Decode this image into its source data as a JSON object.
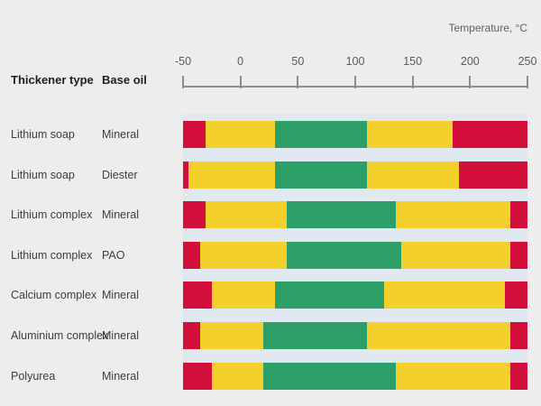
{
  "header": {
    "temperature_label": "Temperature, °C",
    "thickener_col": "Thickener type",
    "base_oil_col": "Base oil"
  },
  "colors": {
    "red": "#d30f3c",
    "yellow": "#f4d02a",
    "green": "#2d9f68",
    "axis": "#8e8e8e",
    "plot_background": "#e0e9f0",
    "page_background": "#ededed"
  },
  "chart_data": {
    "type": "bar",
    "subtype": "stacked-horizontal-temperature-ranges",
    "title": "Temperature, °C",
    "xlabel": "Temperature, °C",
    "xlim": [
      -50,
      250
    ],
    "x_ticks": [
      -50,
      0,
      50,
      100,
      150,
      200,
      250
    ],
    "grid": false,
    "legend": "none",
    "zone_color_names": [
      "red",
      "yellow",
      "green"
    ],
    "rows": [
      {
        "thickener": "Lithium soap",
        "base_oil": "Mineral",
        "bounds": [
          -50,
          -30,
          30,
          110,
          185,
          250
        ],
        "zones": [
          "red",
          "yellow",
          "green",
          "yellow",
          "red"
        ]
      },
      {
        "thickener": "Lithium soap",
        "base_oil": "Diester",
        "bounds": [
          -50,
          -45,
          30,
          110,
          190,
          250
        ],
        "zones": [
          "red",
          "yellow",
          "green",
          "yellow",
          "red"
        ]
      },
      {
        "thickener": "Lithium complex",
        "base_oil": "Mineral",
        "bounds": [
          -50,
          -30,
          40,
          135,
          235,
          250
        ],
        "zones": [
          "red",
          "yellow",
          "green",
          "yellow",
          "red"
        ]
      },
      {
        "thickener": "Lithium complex",
        "base_oil": "PAO",
        "bounds": [
          -50,
          -35,
          40,
          140,
          235,
          250
        ],
        "zones": [
          "red",
          "yellow",
          "green",
          "yellow",
          "red"
        ]
      },
      {
        "thickener": "Calcium complex",
        "base_oil": "Mineral",
        "bounds": [
          -50,
          -25,
          30,
          125,
          230,
          250
        ],
        "zones": [
          "red",
          "yellow",
          "green",
          "yellow",
          "red"
        ]
      },
      {
        "thickener": "Aluminium complex",
        "base_oil": "Mineral",
        "bounds": [
          -50,
          -35,
          20,
          110,
          235,
          250
        ],
        "zones": [
          "red",
          "yellow",
          "green",
          "yellow",
          "red"
        ]
      },
      {
        "thickener": "Polyurea",
        "base_oil": "Mineral",
        "bounds": [
          -50,
          -25,
          20,
          135,
          235,
          250
        ],
        "zones": [
          "red",
          "yellow",
          "green",
          "yellow",
          "red"
        ]
      }
    ]
  }
}
